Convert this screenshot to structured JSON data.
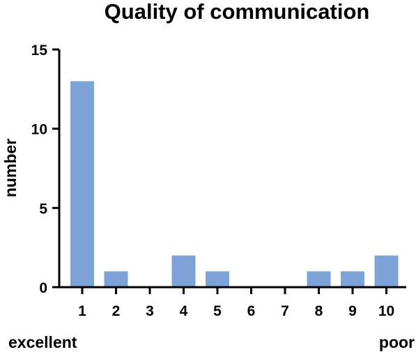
{
  "chart_data": {
    "type": "bar",
    "title": "Quality of communication",
    "xlabel": "",
    "ylabel": "number",
    "categories": [
      "1",
      "2",
      "3",
      "4",
      "5",
      "6",
      "7",
      "8",
      "9",
      "10"
    ],
    "values": [
      13,
      1,
      0,
      2,
      1,
      0,
      0,
      1,
      1,
      2
    ],
    "ylim": [
      0,
      15
    ],
    "yticks": [
      "0",
      "5",
      "10",
      "15"
    ],
    "ytick_values": [
      0,
      5,
      10,
      15
    ],
    "left_end_label": "excellent",
    "right_end_label": "poor",
    "bar_color": "#7ea3d8",
    "grid": false,
    "legend": "none"
  }
}
